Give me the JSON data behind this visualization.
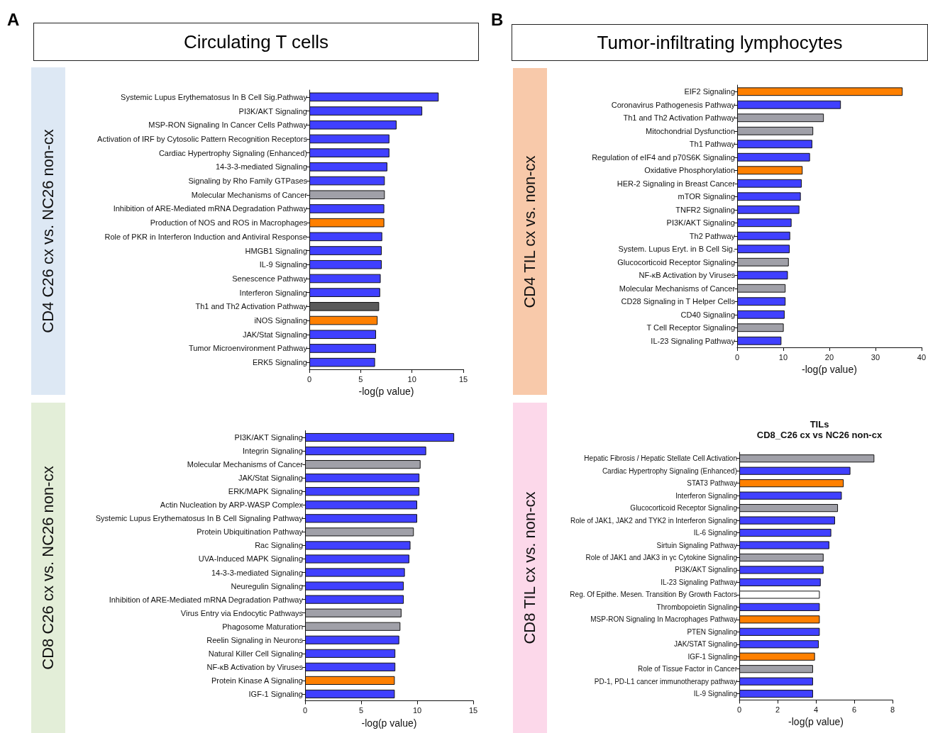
{
  "chart_data": [
    {
      "type": "bar",
      "orientation": "horizontal",
      "annotations": [
        "A",
        "Circulating T cells"
      ],
      "ylabel": "CD4 C26 cx vs. NC26 non-cx",
      "xlabel": "-log(p value)",
      "categories": [
        "Systemic Lupus Erythematosus In B Cell Sig.Pathway",
        "PI3K/AKT Signaling",
        "MSP-RON Signaling In Cancer Cells Pathway",
        "Activation of IRF by Cytosolic Pattern Recognition Receptors",
        "Cardiac Hypertrophy Signaling (Enhanced)",
        "14-3-3-mediated Signaling",
        "Signaling by Rho Family GTPases",
        "Molecular Mechanisms of Cancer",
        "Inhibition of ARE-Mediated mRNA Degradation Pathway",
        "Production of NOS and ROS in Macrophages",
        "Role of PKR in Interferon Induction and Antiviral Response",
        "HMGB1 Signaling",
        "IL-9 Signaling",
        "Senescence Pathway",
        "Interferon Signaling",
        "Th1 and Th2 Activation Pathway",
        "iNOS Signaling",
        "JAK/Stat Signaling",
        "Tumor Microenvironment Pathway",
        "ERK5 Signaling"
      ],
      "values": [
        12.6,
        11.0,
        8.5,
        7.8,
        7.8,
        7.6,
        7.35,
        7.35,
        7.3,
        7.3,
        7.1,
        7.05,
        7.05,
        6.95,
        6.9,
        6.8,
        6.65,
        6.5,
        6.5,
        6.4
      ],
      "colors": [
        "#4040ff",
        "#4040ff",
        "#4040ff",
        "#4040ff",
        "#4040ff",
        "#4040ff",
        "#4040ff",
        "#a0a0a8",
        "#4040ff",
        "#ff8000",
        "#4040ff",
        "#4040ff",
        "#4040ff",
        "#4040ff",
        "#4040ff",
        "#5a5a5a",
        "#ff8000",
        "#4040ff",
        "#4040ff",
        "#4040ff"
      ],
      "xlim": [
        0,
        15
      ],
      "xticks": [
        0,
        5,
        10,
        15
      ]
    },
    {
      "type": "bar",
      "orientation": "horizontal",
      "annotations": [
        "B",
        "Tumor-infiltrating lymphocytes"
      ],
      "ylabel": "CD4 TIL cx vs. non-cx",
      "xlabel": "-log(p value)",
      "categories": [
        "EIF2 Signaling",
        "Coronavirus Pathogenesis Pathway",
        "Th1 and Th2 Activation Pathway",
        "Mitochondrial Dysfunction",
        "Th1 Pathway",
        "Regulation of eIF4 and p70S6K Signaling",
        "Oxidative Phosphorylation",
        "HER-2 Signaling in Breast Cancer",
        "mTOR Signaling",
        "TNFR2 Signaling",
        "PI3K/AKT Signaling",
        "Th2 Pathway",
        "System. Lupus Eryt. in B Cell Sig.",
        "Glucocorticoid Receptor Signaling",
        "NF-κB Activation by Viruses",
        "Molecular Mechanisms of Cancer",
        "CD28 Signaling in T Helper Cells",
        "CD40 Signaling",
        "T Cell Receptor Signaling",
        "IL-23 Signaling Pathway"
      ],
      "values": [
        35.9,
        22.5,
        18.8,
        16.5,
        16.3,
        15.8,
        14.2,
        14.0,
        13.8,
        13.5,
        11.8,
        11.5,
        11.4,
        11.2,
        11.0,
        10.5,
        10.5,
        10.3,
        10.1,
        9.6
      ],
      "colors": [
        "#ff8000",
        "#4040ff",
        "#a0a0a8",
        "#a0a0a8",
        "#4040ff",
        "#4040ff",
        "#ff8000",
        "#4040ff",
        "#4040ff",
        "#4040ff",
        "#4040ff",
        "#4040ff",
        "#4040ff",
        "#a0a0a8",
        "#4040ff",
        "#a0a0a8",
        "#4040ff",
        "#4040ff",
        "#a0a0a8",
        "#4040ff"
      ],
      "xlim": [
        0,
        40
      ],
      "xticks": [
        0,
        10,
        20,
        30,
        40
      ]
    },
    {
      "type": "bar",
      "orientation": "horizontal",
      "ylabel": "CD8 C26 cx vs. NC26 non-cx",
      "xlabel": "-log(p value)",
      "categories": [
        "PI3K/AKT Signaling",
        "Integrin Signaling",
        "Molecular Mechanisms of Cancer",
        "JAK/Stat Signaling",
        "ERK/MAPK Signaling",
        "Actin Nucleation by ARP-WASP Complex",
        "Systemic Lupus Erythematosus In B Cell Signaling Pathway",
        "Protein Ubiquitination Pathway",
        "Rac Signaling",
        "UVA-Induced MAPK Signaling",
        "14-3-3-mediated Signaling",
        "Neuregulin Signaling",
        "Inhibition of ARE-Mediated mRNA Degradation Pathway",
        "Virus Entry via Endocytic Pathways",
        "Phagosome Maturation",
        "Reelin Signaling in Neurons",
        "Natural Killer Cell Signaling",
        "NF-κB Activation by Viruses",
        "Protein Kinase A Signaling",
        "IGF-1 Signaling"
      ],
      "values": [
        13.3,
        10.8,
        10.3,
        10.2,
        10.2,
        10.0,
        10.0,
        9.7,
        9.4,
        9.3,
        8.9,
        8.8,
        8.8,
        8.6,
        8.5,
        8.4,
        8.05,
        8.05,
        8.0,
        8.0
      ],
      "colors": [
        "#4040ff",
        "#4040ff",
        "#a0a0a8",
        "#4040ff",
        "#4040ff",
        "#4040ff",
        "#4040ff",
        "#a0a0a8",
        "#4040ff",
        "#4040ff",
        "#4040ff",
        "#4040ff",
        "#4040ff",
        "#a0a0a8",
        "#a0a0a8",
        "#4040ff",
        "#4040ff",
        "#4040ff",
        "#ff8000",
        "#4040ff"
      ],
      "xlim": [
        0,
        15
      ],
      "xticks": [
        0,
        5,
        10,
        15
      ]
    },
    {
      "type": "bar",
      "orientation": "horizontal",
      "title": "TILs",
      "subtitle": "CD8_C26 cx vs NC26 non-cx",
      "ylabel": "CD8 TIL cx vs. non-cx",
      "xlabel": "-log(p value)",
      "categories": [
        "Hepatic Fibrosis / Hepatic Stellate Cell Activation",
        "Cardiac Hypertrophy Signaling (Enhanced)",
        "STAT3 Pathway",
        "Interferon Signaling",
        "Glucocorticoid Receptor Signaling",
        "Role of JAK1, JAK2 and TYK2 in Interferon Signaling",
        "IL-6 Signaling",
        "Sirtuin Signaling Pathway",
        "Role of JAK1 and JAK3 in γc Cytokine Signaling",
        "PI3K/AKT Signaling",
        "IL-23 Signaling Pathway",
        "Reg. Of Epithe. Mesen. Transition By Growth Factors",
        "Thrombopoietin Signaling",
        "MSP-RON Signaling In Macrophages Pathway",
        "PTEN Signaling",
        "JAK/STAT Signaling",
        "IGF-1 Signaling",
        "Role of Tissue Factor in Cancer",
        "PD-1, PD-L1 cancer immunotherapy pathway",
        "IL-9 Signaling"
      ],
      "values": [
        7.05,
        5.8,
        5.45,
        5.35,
        5.15,
        5.0,
        4.8,
        4.7,
        4.4,
        4.4,
        4.25,
        4.2,
        4.2,
        4.2,
        4.2,
        4.15,
        3.95,
        3.85,
        3.85,
        3.85
      ],
      "colors": [
        "#a0a0a8",
        "#4040ff",
        "#ff8000",
        "#4040ff",
        "#a0a0a8",
        "#4040ff",
        "#4040ff",
        "#4040ff",
        "#a0a0a8",
        "#4040ff",
        "#4040ff",
        "#ffffff",
        "#4040ff",
        "#ff8000",
        "#4040ff",
        "#4040ff",
        "#ff8000",
        "#a0a0a8",
        "#4040ff",
        "#4040ff"
      ],
      "xlim": [
        0,
        8
      ],
      "xticks": [
        0,
        2,
        4,
        6,
        8
      ]
    }
  ]
}
